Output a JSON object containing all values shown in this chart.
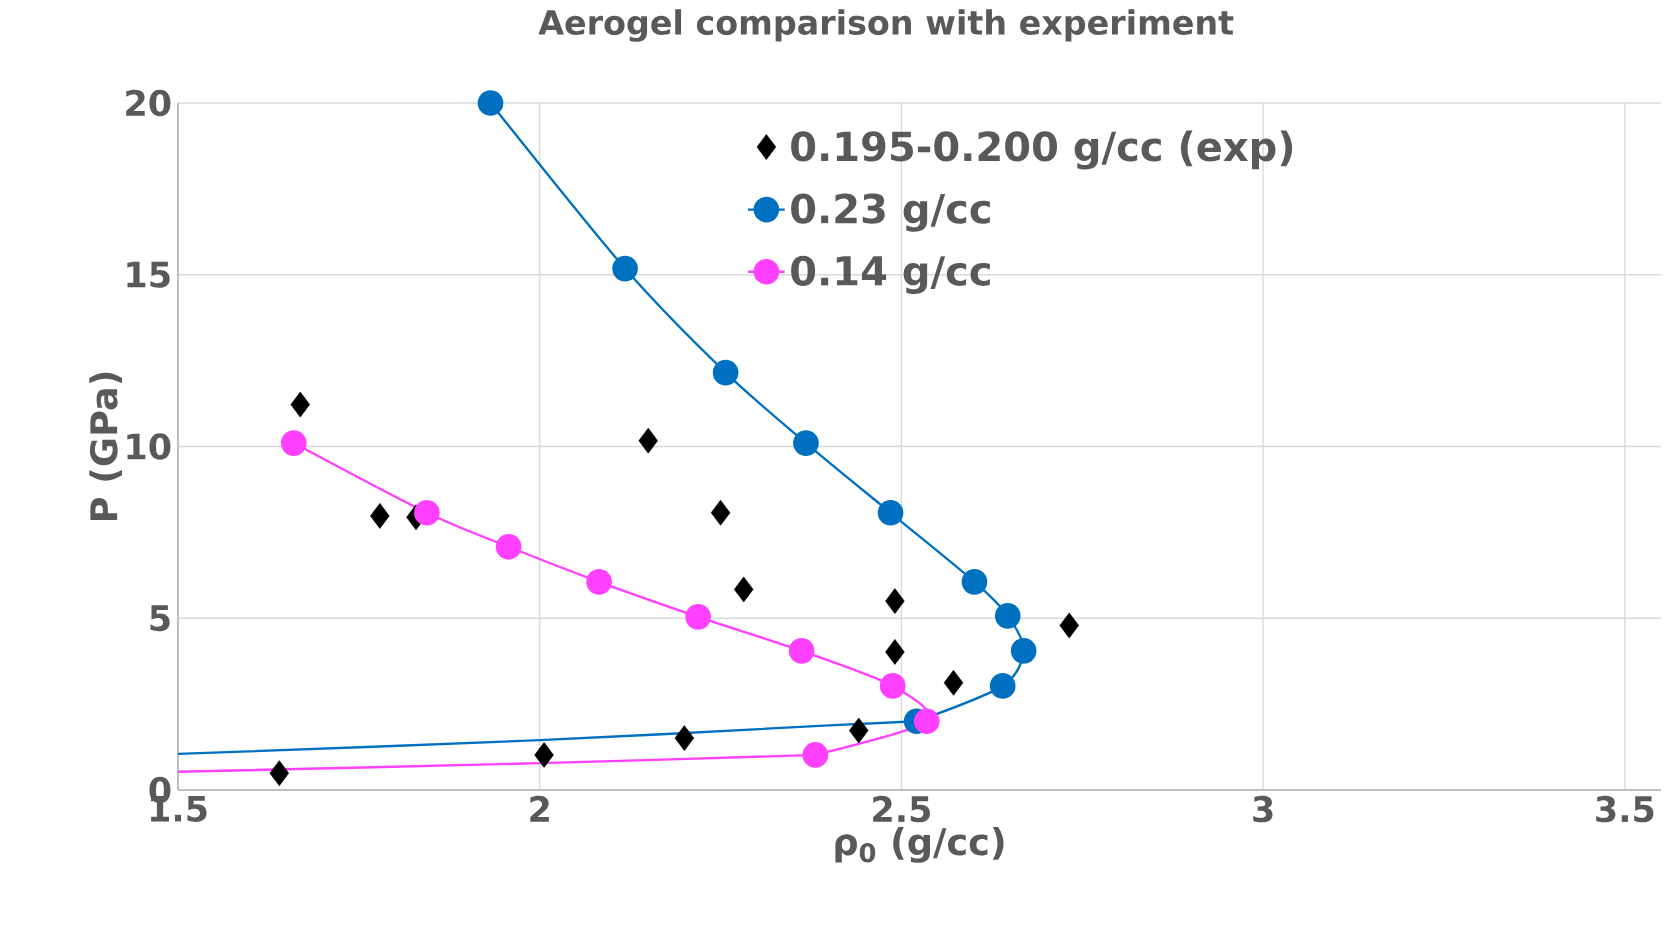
{
  "chart_data": {
    "type": "scatter",
    "title": "Aerogel comparison with experiment",
    "xlabel": "ρ$_{0}$ (g/cc)",
    "ylabel": "P (GPa)",
    "xlim": [
      1.5,
      3.55
    ],
    "xticks": [
      1.5,
      2,
      2.5,
      3,
      3.5
    ],
    "ylim": [
      0,
      20
    ],
    "yticks": [
      0,
      5,
      10,
      15,
      20
    ],
    "grid": true,
    "legend": "top right",
    "series": [
      {
        "name": "0.195-0.200 g/cc (exp)",
        "marker": "diamond",
        "color": "#000000",
        "x": [
          1.64,
          1.669,
          1.779,
          1.829,
          2.006,
          2.15,
          2.2,
          2.25,
          2.282,
          2.441,
          2.491,
          2.491,
          2.572,
          2.732
        ],
        "values": [
          0.49,
          11.22,
          7.98,
          7.94,
          1.02,
          10.17,
          1.51,
          8.07,
          5.84,
          1.73,
          5.5,
          4.02,
          3.12,
          4.79
        ]
      },
      {
        "name": "0.23 g/cc",
        "type": "line",
        "marker": "circle",
        "line_style": "solid",
        "color": "#0070c0",
        "x": [
          1.932,
          2.118,
          2.257,
          2.368,
          2.485,
          2.601,
          2.647,
          2.669,
          2.64,
          2.521
        ],
        "values": [
          20,
          15.18,
          12.15,
          10.1,
          8.07,
          6.06,
          5.07,
          4.05,
          3.03,
          2.0
        ]
      },
      {
        "type": "line",
        "marker": "none",
        "line_style": "solid",
        "color": "#0070c0",
        "x": [
          2.521,
          2.4,
          2.0,
          1.5
        ],
        "values": [
          2.0,
          1.88,
          1.45,
          1.05
        ]
      },
      {
        "name": "0.14 g/cc",
        "type": "line",
        "marker": "circle",
        "line_style": "solid",
        "color": "#ff40ff",
        "x": [
          1.66,
          1.844,
          1.957,
          2.082,
          2.219,
          2.362,
          2.488,
          2.535,
          2.381
        ],
        "values": [
          10.1,
          8.07,
          7.08,
          6.06,
          5.04,
          4.05,
          3.03,
          2.0,
          1.02
        ]
      },
      {
        "type": "line",
        "marker": "none",
        "line_style": "solid",
        "color": "#ff40ff",
        "x": [
          2.381,
          2.0,
          1.5
        ],
        "values": [
          1.02,
          0.78,
          0.53
        ]
      }
    ]
  }
}
